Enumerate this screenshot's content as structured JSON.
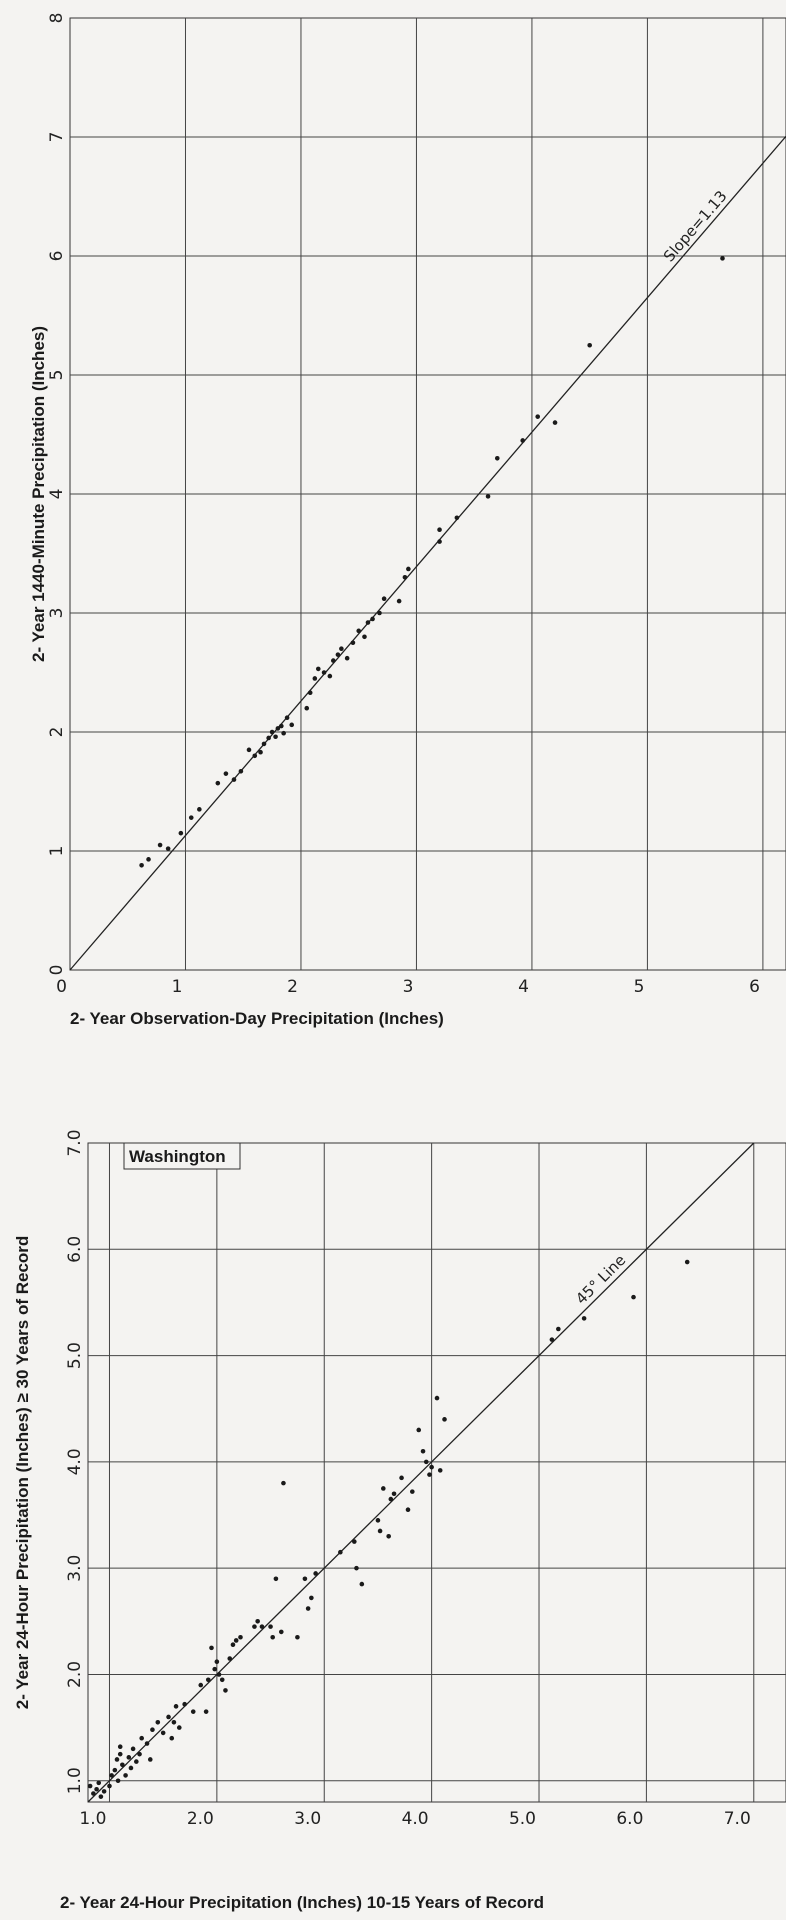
{
  "chart_data": [
    {
      "type": "scatter",
      "title": "",
      "xlabel": "2- Year Observation-Day Precipitation (Inches)",
      "ylabel": "2- Year 1440-Minute Precipitation (Inches)",
      "xlim": [
        0,
        6.2
      ],
      "ylim": [
        0,
        8
      ],
      "x_ticks": [
        "0",
        "1",
        "2",
        "3",
        "4",
        "5",
        "6"
      ],
      "y_ticks": [
        "0",
        "1",
        "2",
        "3",
        "4",
        "5",
        "6",
        "7",
        "8"
      ],
      "grid": true,
      "reference_line": {
        "label": "Slope=1.13",
        "slope": 1.13,
        "intercept": 0
      },
      "points": [
        [
          0.62,
          0.88
        ],
        [
          0.68,
          0.93
        ],
        [
          0.78,
          1.05
        ],
        [
          0.85,
          1.02
        ],
        [
          0.96,
          1.15
        ],
        [
          1.05,
          1.28
        ],
        [
          1.12,
          1.35
        ],
        [
          1.28,
          1.57
        ],
        [
          1.35,
          1.65
        ],
        [
          1.42,
          1.6
        ],
        [
          1.48,
          1.67
        ],
        [
          1.55,
          1.85
        ],
        [
          1.6,
          1.8
        ],
        [
          1.65,
          1.83
        ],
        [
          1.68,
          1.9
        ],
        [
          1.72,
          1.95
        ],
        [
          1.75,
          2.0
        ],
        [
          1.78,
          1.96
        ],
        [
          1.8,
          2.03
        ],
        [
          1.83,
          2.05
        ],
        [
          1.85,
          1.99
        ],
        [
          1.88,
          2.12
        ],
        [
          1.92,
          2.06
        ],
        [
          2.05,
          2.2
        ],
        [
          2.08,
          2.33
        ],
        [
          2.12,
          2.45
        ],
        [
          2.15,
          2.53
        ],
        [
          2.2,
          2.5
        ],
        [
          2.25,
          2.47
        ],
        [
          2.28,
          2.6
        ],
        [
          2.32,
          2.65
        ],
        [
          2.35,
          2.7
        ],
        [
          2.4,
          2.62
        ],
        [
          2.45,
          2.75
        ],
        [
          2.5,
          2.85
        ],
        [
          2.55,
          2.8
        ],
        [
          2.58,
          2.92
        ],
        [
          2.62,
          2.95
        ],
        [
          2.68,
          3.0
        ],
        [
          2.72,
          3.12
        ],
        [
          2.85,
          3.1
        ],
        [
          2.9,
          3.3
        ],
        [
          2.93,
          3.37
        ],
        [
          3.2,
          3.6
        ],
        [
          3.2,
          3.7
        ],
        [
          3.35,
          3.8
        ],
        [
          3.62,
          3.98
        ],
        [
          3.7,
          4.3
        ],
        [
          3.92,
          4.45
        ],
        [
          4.05,
          4.65
        ],
        [
          4.2,
          4.6
        ],
        [
          4.5,
          5.25
        ],
        [
          5.65,
          5.98
        ]
      ]
    },
    {
      "type": "scatter",
      "title": "Washington",
      "xlabel": "2- Year 24-Hour Precipitation (Inches) 10-15 Years of Record",
      "ylabel": "2- Year 24-Hour Precipitation (Inches) ≥ 30 Years of Record",
      "xlim": [
        0.8,
        7.3
      ],
      "ylim": [
        0.8,
        7.0
      ],
      "x_ticks": [
        "1.0",
        "2.0",
        "3.0",
        "4.0",
        "5.0",
        "6.0",
        "7.0"
      ],
      "y_ticks": [
        "1.0",
        "2.0",
        "3.0",
        "4.0",
        "5.0",
        "6.0",
        "7.0"
      ],
      "grid": true,
      "reference_line": {
        "label": "45° Line",
        "slope": 1,
        "intercept": 0
      },
      "points": [
        [
          0.82,
          0.95
        ],
        [
          0.85,
          0.88
        ],
        [
          0.88,
          0.92
        ],
        [
          0.9,
          0.98
        ],
        [
          0.92,
          0.85
        ],
        [
          0.95,
          0.9
        ],
        [
          1.0,
          0.95
        ],
        [
          1.02,
          1.05
        ],
        [
          1.05,
          1.1
        ],
        [
          1.07,
          1.2
        ],
        [
          1.08,
          1.0
        ],
        [
          1.1,
          1.25
        ],
        [
          1.1,
          1.32
        ],
        [
          1.12,
          1.15
        ],
        [
          1.15,
          1.05
        ],
        [
          1.18,
          1.22
        ],
        [
          1.2,
          1.12
        ],
        [
          1.22,
          1.3
        ],
        [
          1.25,
          1.18
        ],
        [
          1.28,
          1.25
        ],
        [
          1.3,
          1.4
        ],
        [
          1.35,
          1.35
        ],
        [
          1.38,
          1.2
        ],
        [
          1.4,
          1.48
        ],
        [
          1.45,
          1.55
        ],
        [
          1.5,
          1.45
        ],
        [
          1.55,
          1.6
        ],
        [
          1.58,
          1.4
        ],
        [
          1.6,
          1.55
        ],
        [
          1.62,
          1.7
        ],
        [
          1.65,
          1.5
        ],
        [
          1.7,
          1.72
        ],
        [
          1.78,
          1.65
        ],
        [
          1.85,
          1.9
        ],
        [
          1.9,
          1.65
        ],
        [
          1.92,
          1.95
        ],
        [
          1.95,
          2.25
        ],
        [
          1.98,
          2.05
        ],
        [
          2.0,
          2.12
        ],
        [
          2.02,
          2.0
        ],
        [
          2.05,
          1.95
        ],
        [
          2.08,
          1.85
        ],
        [
          2.12,
          2.15
        ],
        [
          2.15,
          2.28
        ],
        [
          2.18,
          2.32
        ],
        [
          2.22,
          2.35
        ],
        [
          2.35,
          2.45
        ],
        [
          2.38,
          2.5
        ],
        [
          2.42,
          2.45
        ],
        [
          2.5,
          2.45
        ],
        [
          2.52,
          2.35
        ],
        [
          2.55,
          2.9
        ],
        [
          2.6,
          2.4
        ],
        [
          2.62,
          3.8
        ],
        [
          2.75,
          2.35
        ],
        [
          2.82,
          2.9
        ],
        [
          2.85,
          2.62
        ],
        [
          2.88,
          2.72
        ],
        [
          2.92,
          2.95
        ],
        [
          3.15,
          3.15
        ],
        [
          3.28,
          3.25
        ],
        [
          3.3,
          3.0
        ],
        [
          3.35,
          2.85
        ],
        [
          3.5,
          3.45
        ],
        [
          3.52,
          3.35
        ],
        [
          3.55,
          3.75
        ],
        [
          3.6,
          3.3
        ],
        [
          3.62,
          3.65
        ],
        [
          3.65,
          3.7
        ],
        [
          3.72,
          3.85
        ],
        [
          3.78,
          3.55
        ],
        [
          3.82,
          3.72
        ],
        [
          3.88,
          4.3
        ],
        [
          3.92,
          4.1
        ],
        [
          3.95,
          4.0
        ],
        [
          3.98,
          3.88
        ],
        [
          4.0,
          3.95
        ],
        [
          4.05,
          4.6
        ],
        [
          4.08,
          3.92
        ],
        [
          4.12,
          4.4
        ],
        [
          5.12,
          5.15
        ],
        [
          5.18,
          5.25
        ],
        [
          5.42,
          5.35
        ],
        [
          5.88,
          5.55
        ],
        [
          6.38,
          5.88
        ]
      ]
    }
  ]
}
